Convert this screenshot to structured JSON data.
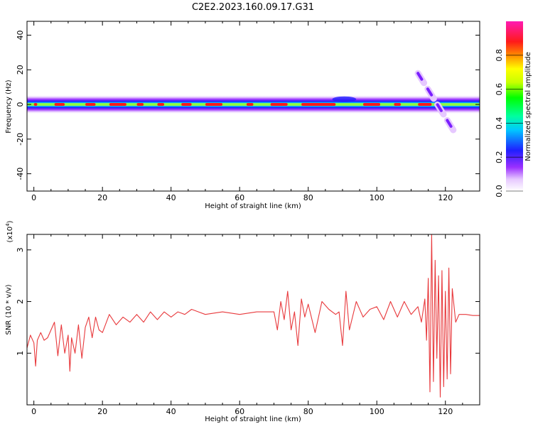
{
  "title": "C2E2.2023.160.09.17.G31",
  "chart_data": [
    {
      "type": "heatmap",
      "xlabel": "Height of straight line (km)",
      "ylabel": "Frequency (Hz)",
      "xlim": [
        -2,
        130
      ],
      "ylim": [
        -50,
        48
      ],
      "xticks": [
        0,
        20,
        40,
        60,
        80,
        100,
        120
      ],
      "yticks": [
        -40,
        -20,
        0,
        20,
        40
      ],
      "colorbar": {
        "label": "Normalized spectral amplitude",
        "range": [
          0,
          1
        ],
        "ticks": [
          "0.0",
          "0.2",
          "0.4",
          "0.6",
          "0.8"
        ],
        "colormap": "rainbow (white, purple, blue, cyan, green, yellow, red, magenta)"
      },
      "band": {
        "center_hz": 0,
        "half_width_hz": 2.5,
        "x_range": [
          -2,
          130
        ],
        "peak_segments_km": [
          [
            0,
            1
          ],
          [
            6,
            9
          ],
          [
            15,
            18
          ],
          [
            22,
            27
          ],
          [
            30,
            32
          ],
          [
            36,
            38
          ],
          [
            43,
            46
          ],
          [
            50,
            55
          ],
          [
            62,
            64
          ],
          [
            69,
            74
          ],
          [
            78,
            88
          ],
          [
            96,
            101
          ],
          [
            105,
            107
          ],
          [
            112,
            116
          ]
        ],
        "bulge": {
          "x_range_km": [
            87,
            94
          ],
          "freq_hz": 3
        }
      },
      "features": [
        {
          "name": "ionospheric diagonal streak",
          "from": {
            "x_km": 112,
            "freq_hz": 18
          },
          "to": {
            "x_km": 123,
            "freq_hz": -17
          }
        }
      ]
    },
    {
      "type": "line",
      "xlabel": "Height of straight line (km)",
      "ylabel": "SNR (10 * v/v)",
      "ymultiplier": "(x10",
      "ymultiplier_exp": "4",
      "ymultiplier_close": ")",
      "xlim": [
        -2,
        130
      ],
      "ylim": [
        0,
        3.3
      ],
      "xticks": [
        0,
        20,
        40,
        60,
        80,
        100,
        120
      ],
      "yticks": [
        1,
        2,
        3
      ],
      "series": [
        {
          "color": "#e8393c",
          "x": [
            -2,
            -1,
            0,
            0.5,
            1,
            2,
            3,
            4,
            5,
            6,
            7,
            8,
            9,
            10,
            10.5,
            11,
            12,
            13,
            14,
            15,
            16,
            17,
            18,
            19,
            20,
            22,
            24,
            26,
            28,
            30,
            32,
            34,
            36,
            38,
            40,
            42,
            44,
            46,
            48,
            50,
            55,
            60,
            65,
            70,
            71,
            72,
            73,
            74,
            75,
            76,
            77,
            78,
            79,
            80,
            82,
            84,
            86,
            88,
            89,
            90,
            91,
            92,
            94,
            96,
            98,
            100,
            102,
            104,
            106,
            108,
            110,
            112,
            113,
            114,
            114.5,
            115,
            115.5,
            116,
            116.5,
            117,
            117.5,
            118,
            118.5,
            119,
            119.5,
            120,
            120.5,
            121,
            121.5,
            122,
            123,
            124,
            126,
            128,
            130
          ],
          "y": [
            1.1,
            1.35,
            1.2,
            0.75,
            1.25,
            1.4,
            1.25,
            1.3,
            1.45,
            1.6,
            0.95,
            1.55,
            1.0,
            1.35,
            0.65,
            1.3,
            1.0,
            1.55,
            0.9,
            1.5,
            1.7,
            1.3,
            1.7,
            1.45,
            1.4,
            1.75,
            1.55,
            1.7,
            1.6,
            1.75,
            1.6,
            1.8,
            1.65,
            1.8,
            1.7,
            1.8,
            1.75,
            1.85,
            1.8,
            1.75,
            1.8,
            1.75,
            1.8,
            1.8,
            1.45,
            2.0,
            1.65,
            2.2,
            1.45,
            1.8,
            1.15,
            2.05,
            1.7,
            1.95,
            1.4,
            2.0,
            1.85,
            1.75,
            1.8,
            1.15,
            2.2,
            1.45,
            2.0,
            1.7,
            1.85,
            1.9,
            1.65,
            2.0,
            1.7,
            2.0,
            1.75,
            1.9,
            1.6,
            2.05,
            1.25,
            2.45,
            0.25,
            3.3,
            0.45,
            2.8,
            0.9,
            2.5,
            0.15,
            2.6,
            0.35,
            2.2,
            0.5,
            2.65,
            0.6,
            2.25,
            1.6,
            1.75,
            1.75,
            1.73,
            1.73
          ]
        }
      ]
    }
  ]
}
